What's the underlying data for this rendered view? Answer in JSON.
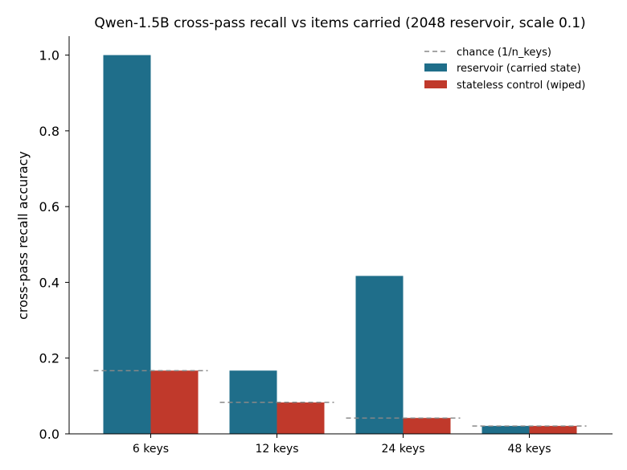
{
  "chart_data": {
    "type": "bar",
    "title": "Qwen-1.5B cross-pass recall vs items carried (2048 reservoir, scale 0.1)",
    "xlabel": "",
    "ylabel": "cross-pass recall accuracy",
    "categories": [
      "6 keys",
      "12 keys",
      "24 keys",
      "48 keys"
    ],
    "ylim": [
      0,
      1.05
    ],
    "yticks": [
      "0.0",
      "0.2",
      "0.4",
      "0.6",
      "0.8",
      "1.0"
    ],
    "series": [
      {
        "name": "reservoir (carried state)",
        "color": "#1f6e8a",
        "values": [
          1.0,
          0.167,
          0.417,
          0.021
        ]
      },
      {
        "name": "stateless control (wiped)",
        "color": "#c0392b",
        "values": [
          0.167,
          0.083,
          0.042,
          0.021
        ]
      }
    ],
    "reference": {
      "name": "chance (1/n_keys)",
      "color": "#888888",
      "style": "dashed",
      "values": [
        0.1667,
        0.0833,
        0.0417,
        0.0208
      ]
    },
    "legend_position": "top-right",
    "grid": false
  }
}
